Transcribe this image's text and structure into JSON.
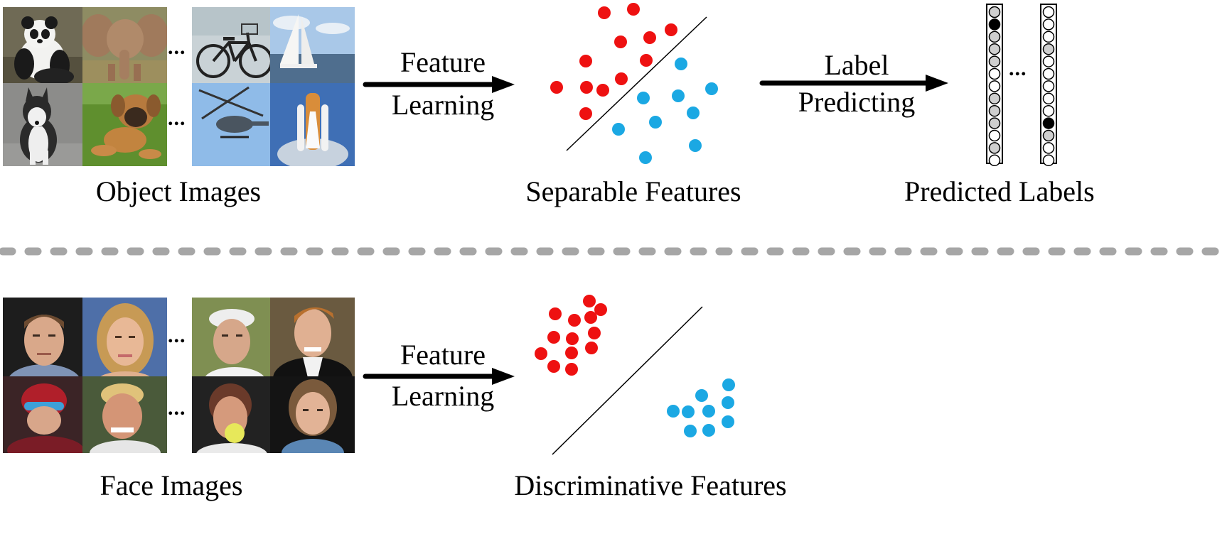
{
  "object_section": {
    "caption": "Object Images",
    "ellipsis": "...",
    "tiles": [
      {
        "name": "panda",
        "icon": "panda-photo"
      },
      {
        "name": "elephant",
        "icon": "elephant-photo"
      },
      {
        "name": "husky",
        "icon": "husky-photo"
      },
      {
        "name": "puppy",
        "icon": "puppy-photo"
      },
      {
        "name": "bicycle",
        "icon": "bicycle-photo"
      },
      {
        "name": "sailboat",
        "icon": "sailboat-photo"
      },
      {
        "name": "helicopter",
        "icon": "helicopter-photo"
      },
      {
        "name": "space-shuttle",
        "icon": "space-shuttle-photo"
      }
    ]
  },
  "feature_arrow_top": {
    "line1": "Feature",
    "line2": "Learning"
  },
  "separable": {
    "caption": "Separable Features"
  },
  "label_arrow": {
    "line1": "Label",
    "line2": "Predicting"
  },
  "predicted": {
    "caption": "Predicted Labels",
    "ellipsis": "..."
  },
  "face_section": {
    "caption": "Face Images",
    "ellipsis": "...",
    "tiles": [
      {
        "name": "face-man-1",
        "icon": "face-photo"
      },
      {
        "name": "face-woman-1",
        "icon": "face-photo"
      },
      {
        "name": "face-golfer",
        "icon": "face-photo"
      },
      {
        "name": "face-man-tuxedo",
        "icon": "face-photo"
      },
      {
        "name": "face-skater",
        "icon": "face-photo"
      },
      {
        "name": "face-man-smile",
        "icon": "face-photo"
      },
      {
        "name": "face-tennis",
        "icon": "face-photo"
      },
      {
        "name": "face-woman-2",
        "icon": "face-photo"
      }
    ]
  },
  "feature_arrow_bottom": {
    "line1": "Feature",
    "line2": "Learning"
  },
  "discriminative": {
    "caption": "Discriminative Features"
  },
  "colors": {
    "class_a": "#ee1111",
    "class_b": "#1ba8e3",
    "divider": "#a6a6a6"
  }
}
